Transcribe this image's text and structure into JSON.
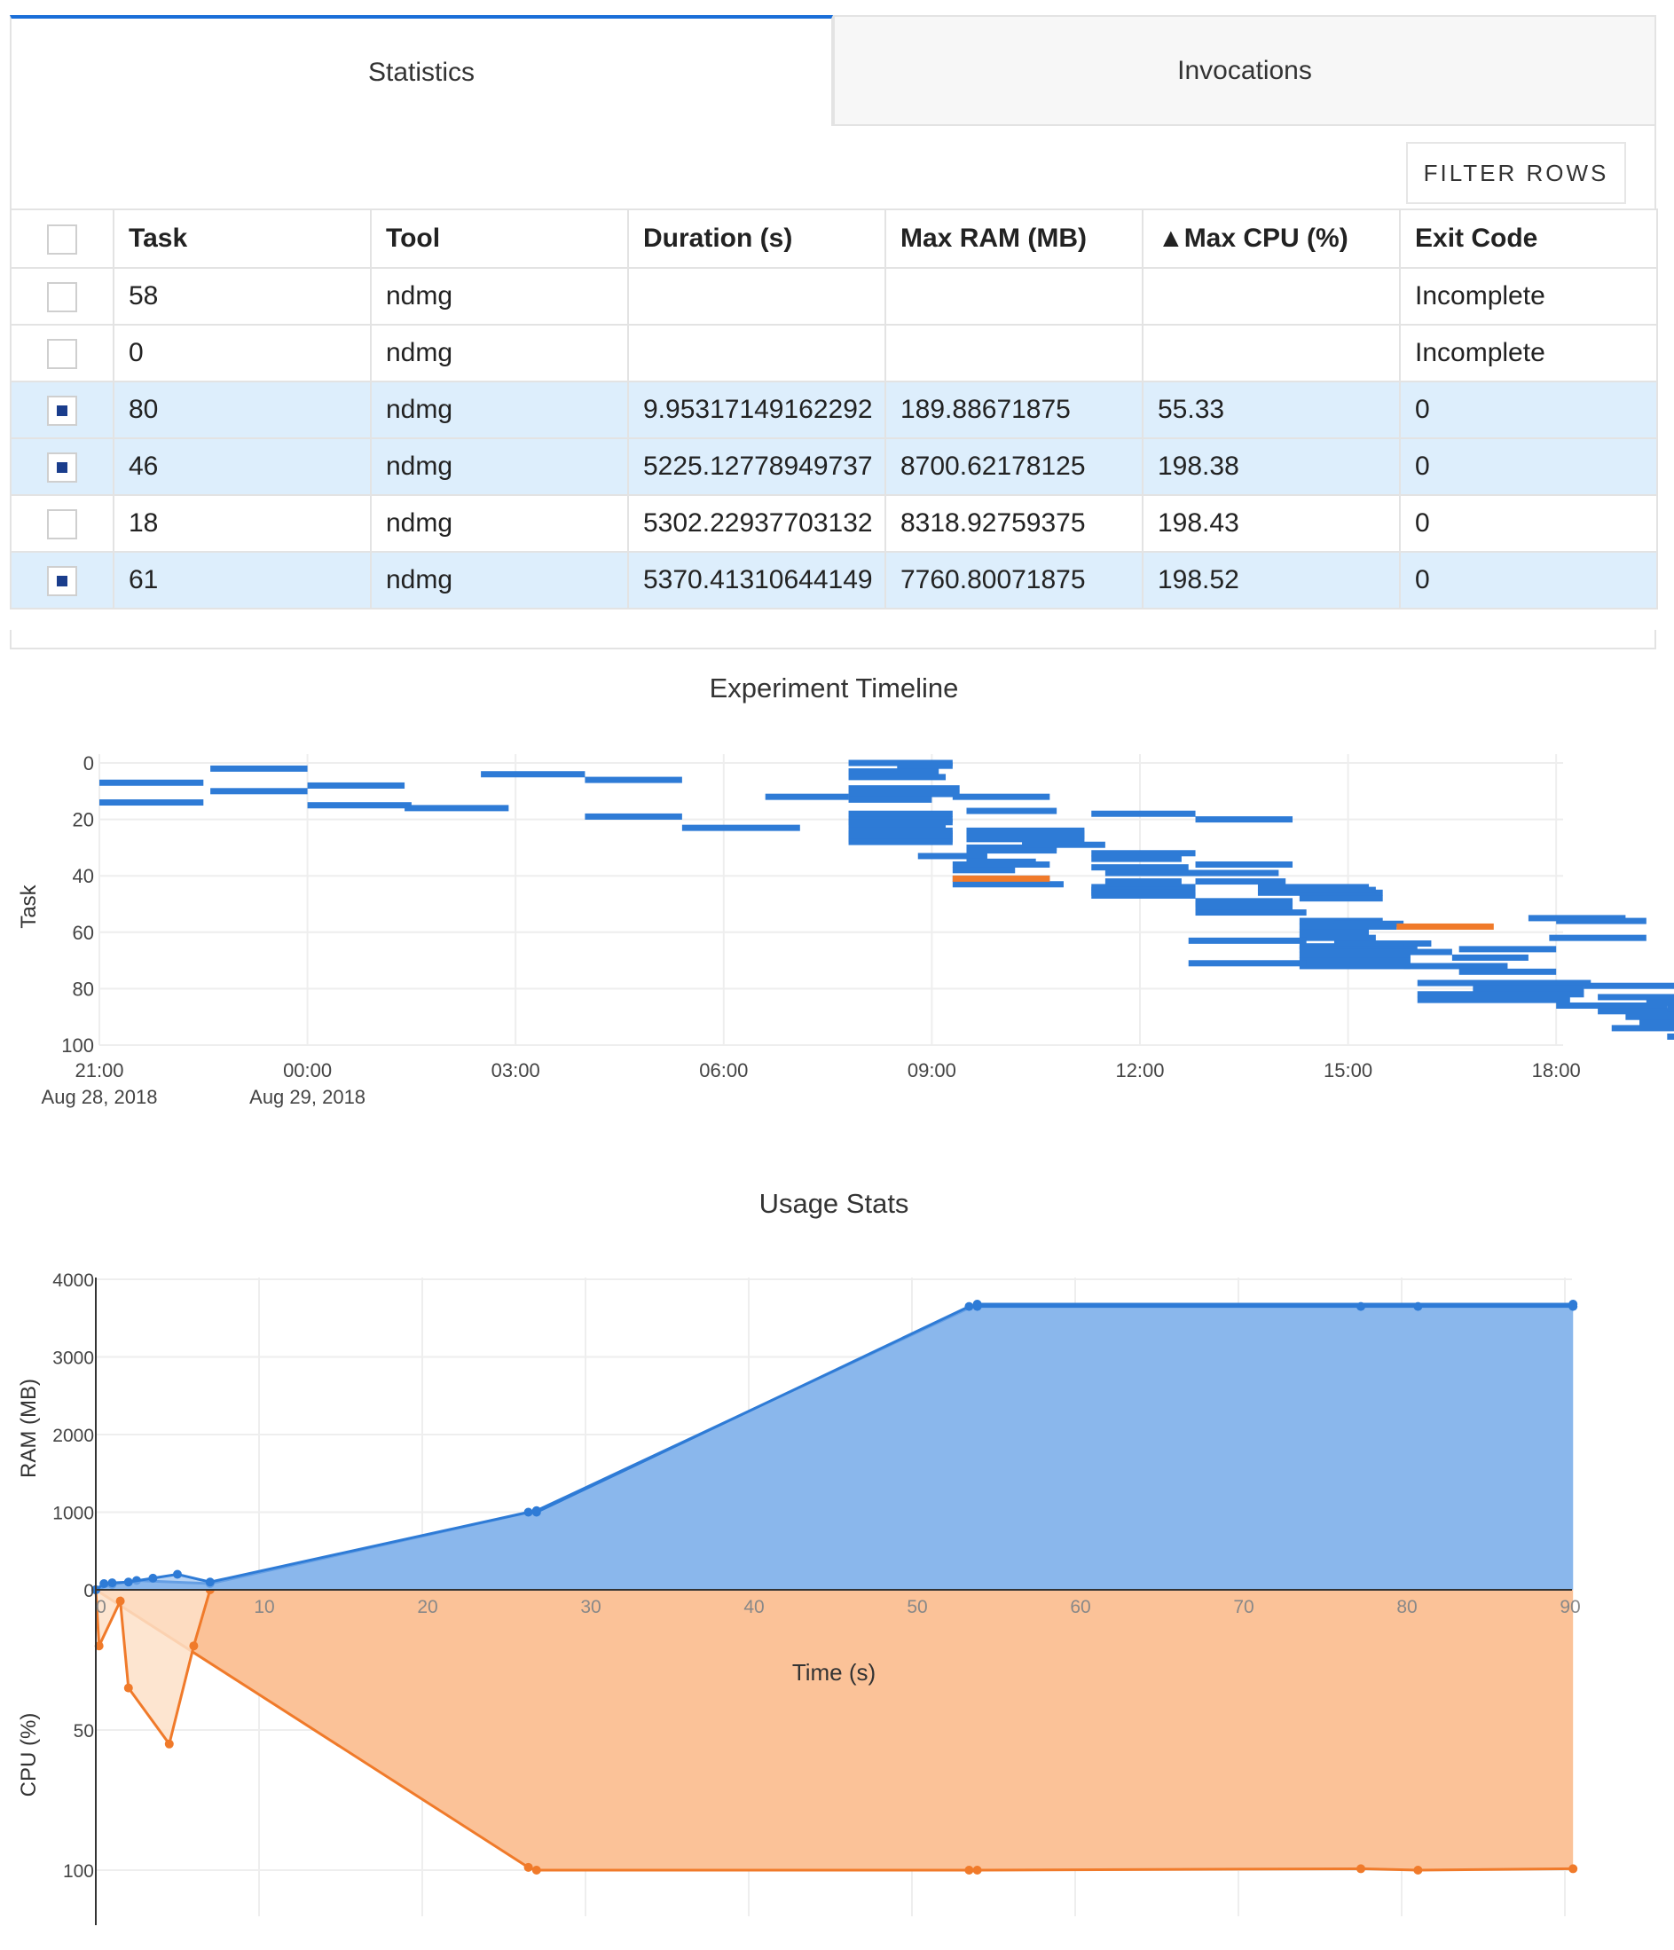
{
  "tabs": [
    {
      "label": "Statistics",
      "active": true
    },
    {
      "label": "Invocations",
      "active": false
    }
  ],
  "toolbar": {
    "filter_label": "FILTER ROWS"
  },
  "table": {
    "columns": [
      "Task",
      "Tool",
      "Duration (s)",
      "Max RAM (MB)",
      "▲Max CPU (%)",
      "Exit Code"
    ],
    "rows": [
      {
        "selected": false,
        "cells": [
          "58",
          "ndmg",
          "",
          "",
          "",
          "Incomplete"
        ]
      },
      {
        "selected": false,
        "cells": [
          "0",
          "ndmg",
          "",
          "",
          "",
          "Incomplete"
        ]
      },
      {
        "selected": true,
        "cells": [
          "80",
          "ndmg",
          "9.95317149162292",
          "189.88671875",
          "55.33",
          "0"
        ]
      },
      {
        "selected": true,
        "cells": [
          "46",
          "ndmg",
          "5225.12778949737",
          "8700.62178125",
          "198.38",
          "0"
        ]
      },
      {
        "selected": false,
        "cells": [
          "18",
          "ndmg",
          "5302.22937703132",
          "8318.92759375",
          "198.43",
          "0"
        ]
      },
      {
        "selected": true,
        "cells": [
          "61",
          "ndmg",
          "5370.41310644149",
          "7760.80071875",
          "198.52",
          "0"
        ]
      }
    ]
  },
  "chart_data": [
    {
      "type": "timeline",
      "title": "Experiment Timeline",
      "ylabel": "Task",
      "ylim": [
        100,
        0
      ],
      "yticks": [
        "0",
        "20",
        "40",
        "60",
        "80",
        "100"
      ],
      "xlim_hours": [
        21,
        42.1
      ],
      "xticks": [
        {
          "label": "21:00",
          "sublabel": "Aug 28, 2018"
        },
        {
          "label": "00:00",
          "sublabel": "Aug 29, 2018"
        },
        {
          "label": "03:00",
          "sublabel": ""
        },
        {
          "label": "06:00",
          "sublabel": ""
        },
        {
          "label": "09:00",
          "sublabel": ""
        },
        {
          "label": "12:00",
          "sublabel": ""
        },
        {
          "label": "15:00",
          "sublabel": ""
        },
        {
          "label": "18:00",
          "sublabel": ""
        }
      ],
      "colors": {
        "normal": "#2e7bd6",
        "highlight": "#f07a2a"
      },
      "bars": [
        [
          7,
          21.0,
          22.5
        ],
        [
          14,
          21.0,
          22.5
        ],
        [
          2,
          22.6,
          24.0
        ],
        [
          10,
          22.6,
          24.0
        ],
        [
          8,
          24.0,
          25.4
        ],
        [
          15,
          24.0,
          25.5
        ],
        [
          16,
          25.4,
          26.9
        ],
        [
          4,
          26.5,
          28.0
        ],
        [
          6,
          28.0,
          29.4
        ],
        [
          19,
          28.0,
          29.4
        ],
        [
          23,
          29.4,
          31.1
        ],
        [
          12,
          30.6,
          31.8
        ],
        [
          0,
          31.8,
          33.3
        ],
        [
          3,
          31.8,
          33.1
        ],
        [
          5,
          31.8,
          33.2
        ],
        [
          9,
          31.8,
          33.4
        ],
        [
          11,
          31.8,
          33.4
        ],
        [
          13,
          31.8,
          33.0
        ],
        [
          18,
          31.8,
          33.3
        ],
        [
          20,
          31.8,
          33.3
        ],
        [
          21,
          31.8,
          33.3
        ],
        [
          22,
          31.8,
          33.2
        ],
        [
          24,
          31.8,
          33.3
        ],
        [
          25,
          31.8,
          33.3
        ],
        [
          26,
          31.8,
          33.3
        ],
        [
          27,
          31.8,
          33.3
        ],
        [
          28,
          31.8,
          33.3
        ],
        [
          1,
          32.5,
          33.3
        ],
        [
          17,
          33.5,
          34.8
        ],
        [
          12,
          33.3,
          34.7
        ],
        [
          33,
          32.8,
          33.8
        ],
        [
          30,
          33.5,
          34.8
        ],
        [
          31,
          33.5,
          34.8
        ],
        [
          35,
          33.5,
          34.5
        ],
        [
          36,
          33.3,
          34.7
        ],
        [
          38,
          33.3,
          34.2
        ],
        [
          41,
          33.3,
          34.7
        ],
        [
          43,
          33.3,
          34.9
        ],
        [
          24,
          33.5,
          35.2
        ],
        [
          25,
          33.5,
          35.2
        ],
        [
          26,
          33.5,
          35.2
        ],
        [
          27,
          33.5,
          35.2
        ],
        [
          29,
          34.3,
          35.5
        ],
        [
          32,
          35.3,
          36.8
        ],
        [
          34,
          35.3,
          36.6
        ],
        [
          37,
          35.3,
          36.7
        ],
        [
          39,
          35.5,
          36.9
        ],
        [
          42,
          35.5,
          36.6
        ],
        [
          44,
          35.3,
          36.8
        ],
        [
          45,
          35.3,
          36.6
        ],
        [
          46,
          35.3,
          36.8
        ],
        [
          47,
          35.3,
          36.8
        ],
        [
          18,
          35.3,
          36.8
        ],
        [
          20,
          36.8,
          38.2
        ],
        [
          36,
          36.8,
          38.2
        ],
        [
          39,
          36.8,
          38.0
        ],
        [
          42,
          36.8,
          38.1
        ],
        [
          46,
          37.7,
          39.5
        ],
        [
          44,
          37.7,
          39.3
        ],
        [
          49,
          36.8,
          38.2
        ],
        [
          50,
          36.8,
          38.2
        ],
        [
          51,
          36.8,
          38.2
        ],
        [
          53,
          36.8,
          38.4
        ],
        [
          45,
          38.2,
          39.4
        ],
        [
          48,
          38.3,
          39.5
        ],
        [
          56,
          38.3,
          39.5
        ],
        [
          58,
          38.3,
          39.7
        ],
        [
          57,
          38.8,
          39.8
        ],
        [
          60,
          38.3,
          39.3
        ],
        [
          62,
          38.3,
          39.4
        ],
        [
          64,
          38.8,
          40.2
        ],
        [
          65,
          38.3,
          39.8
        ],
        [
          66,
          38.3,
          40.0
        ],
        [
          68,
          38.3,
          39.9
        ],
        [
          70,
          38.3,
          39.9
        ],
        [
          72,
          38.3,
          39.9
        ],
        [
          63,
          36.7,
          38.4
        ],
        [
          71,
          36.7,
          38.4
        ],
        [
          67,
          38.8,
          40.5
        ],
        [
          69,
          40.5,
          41.6
        ],
        [
          62,
          41.9,
          43.3
        ],
        [
          55,
          41.6,
          43.0
        ],
        [
          56,
          42.0,
          43.3
        ],
        [
          66,
          40.6,
          42.0
        ],
        [
          72,
          39.8,
          41.3
        ],
        [
          74,
          40.6,
          42.0
        ],
        [
          78,
          40.0,
          42.5
        ],
        [
          80,
          40.8,
          42.4
        ],
        [
          82,
          40.0,
          42.4
        ],
        [
          84,
          40.0,
          42.2
        ],
        [
          86,
          42.0,
          43.6
        ],
        [
          79,
          42.4,
          44.1
        ],
        [
          83,
          42.6,
          44.0
        ],
        [
          88,
          42.6,
          44.3
        ],
        [
          90,
          43.0,
          44.6
        ],
        [
          92,
          43.2,
          44.8
        ],
        [
          94,
          42.8,
          44.6
        ],
        [
          96,
          44.0,
          45.4
        ],
        [
          97,
          43.6,
          45.1
        ],
        [
          98,
          44.2,
          46.0
        ],
        [
          91,
          44.6,
          46.1
        ],
        [
          93,
          45.2,
          46.4
        ],
        [
          95,
          45.4,
          46.6
        ],
        [
          99,
          44.4,
          46.0
        ],
        [
          100,
          44.0,
          45.2
        ],
        [
          77,
          43.8,
          45.0
        ],
        [
          76,
          44.2,
          45.6
        ],
        [
          85,
          43.3,
          44.7
        ],
        [
          87,
          43.6,
          45.0
        ],
        [
          89,
          44.2,
          45.6
        ],
        [
          81,
          44.8,
          45.8
        ]
      ],
      "highlight_bars": [
        [
          41,
          33.3,
          34.7
        ],
        [
          58,
          39.7,
          41.1
        ]
      ]
    },
    {
      "type": "area",
      "title": "Usage Stats",
      "xlabel": "Time (s)",
      "xlim": [
        0,
        90
      ],
      "xticks": [
        "0",
        "10",
        "20",
        "30",
        "40",
        "50",
        "60",
        "70",
        "80",
        "90"
      ],
      "ram": {
        "ylabel": "RAM (MB)",
        "ylim": [
          0,
          4000
        ],
        "yticks": [
          "0",
          "1000",
          "2000",
          "3000",
          "4000"
        ],
        "color": "#2e7bd6",
        "fill": "#8ab7ec",
        "series": [
          {
            "x": [
              0,
              0.5,
              1,
              2,
              3.5,
              5,
              7,
              26.5,
              27,
              53.5,
              54,
              77.5,
              81,
              90.5
            ],
            "y": [
              0,
              80,
              90,
              100,
              150,
              200,
              100,
              1000,
              1000,
              3650,
              3650,
              3650,
              3650,
              3650
            ]
          },
          {
            "x": [
              0,
              1,
              2.5,
              7,
              27,
              54,
              90.5
            ],
            "y": [
              0,
              70,
              120,
              80,
              1020,
              3680,
              3680
            ]
          }
        ]
      },
      "cpu": {
        "ylabel": "CPU (%)",
        "ylim": [
          0,
          100
        ],
        "yticks": [
          "50",
          "100"
        ],
        "color": "#f07a2a",
        "fill": "#fbc298",
        "series": [
          {
            "x": [
              0,
              0.2,
              1.5,
              2,
              4.5,
              6,
              7
            ],
            "y": [
              0,
              20,
              4,
              35,
              55,
              20,
              0
            ]
          },
          {
            "x": [
              0,
              26.5,
              27,
              53.5,
              54,
              77.5,
              81,
              90.5
            ],
            "y": [
              0,
              99,
              100,
              100,
              100,
              99.5,
              100,
              99.5
            ]
          }
        ]
      }
    }
  ]
}
